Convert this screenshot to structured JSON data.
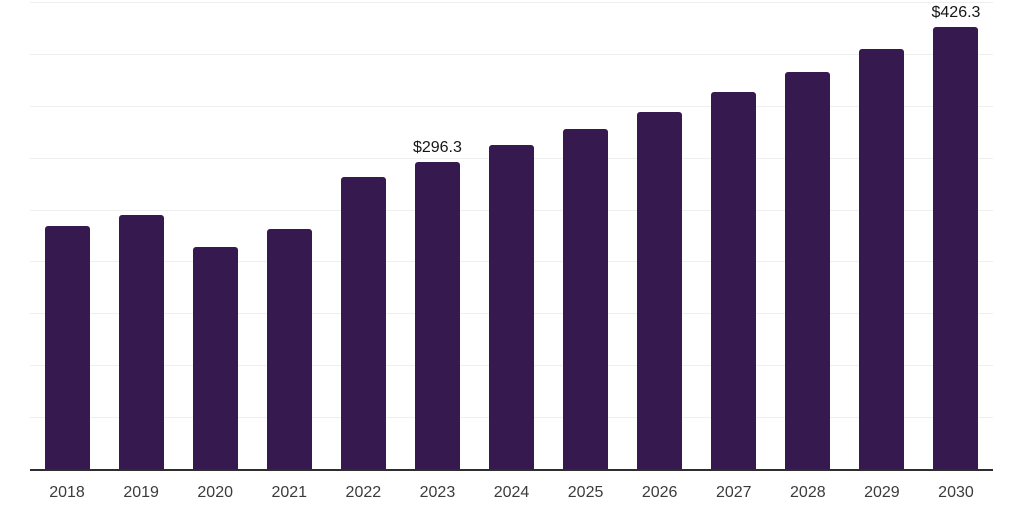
{
  "chart_data": {
    "type": "bar",
    "categories": [
      "2018",
      "2019",
      "2020",
      "2021",
      "2022",
      "2023",
      "2024",
      "2025",
      "2026",
      "2027",
      "2028",
      "2029",
      "2030"
    ],
    "values": [
      234,
      245,
      214,
      231,
      281,
      296.3,
      312,
      327.5,
      344,
      363,
      383,
      404.5,
      426.3
    ],
    "annotations": [
      {
        "category": "2023",
        "text": "$296.3"
      },
      {
        "category": "2030",
        "text": "$426.3"
      }
    ],
    "ylim": [
      0,
      450
    ],
    "grid_step": 50,
    "grid": "horizontal-only",
    "legend": false,
    "y_axis_labels_visible": false,
    "colors": {
      "bar": "#36194E",
      "gridline": "#EFEFEF",
      "axis_line": "#2E2E2E",
      "tick_label": "#3B3B3B",
      "data_label": "#161616",
      "background": "#FFFFFF"
    }
  }
}
